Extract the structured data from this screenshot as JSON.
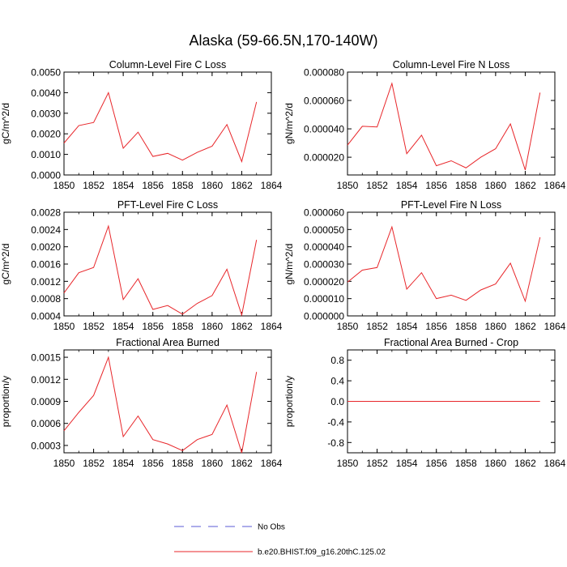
{
  "figure_title": "Alaska (59-66.5N,170-140W)",
  "legend": {
    "entries": [
      {
        "label": "No Obs",
        "color": "#5b5bd6",
        "dash": true
      },
      {
        "label": "b.e20.BHIST.f09_g16.20thC.125.02",
        "color": "#e8262a",
        "dash": false
      }
    ]
  },
  "chart_data": [
    {
      "type": "line",
      "title": "Column-Level Fire C Loss",
      "ylabel": "gC/m^2/d",
      "xlim": [
        1850,
        1864
      ],
      "ylim": [
        0.0,
        0.005
      ],
      "xticks": [
        "1850",
        "1852",
        "1854",
        "1856",
        "1858",
        "1860",
        "1862",
        "1864"
      ],
      "yticks": [
        "0.0000",
        "0.0010",
        "0.0020",
        "0.0030",
        "0.0040",
        "0.0050"
      ],
      "x": [
        1850,
        1851,
        1852,
        1853,
        1854,
        1855,
        1856,
        1857,
        1858,
        1859,
        1860,
        1861,
        1862,
        1863
      ],
      "series": [
        {
          "color": "#e8262a",
          "values": [
            0.00155,
            0.0024,
            0.00255,
            0.004,
            0.0013,
            0.00208,
            0.0009,
            0.00105,
            0.00072,
            0.0011,
            0.0014,
            0.00245,
            0.00065,
            0.00355
          ]
        }
      ]
    },
    {
      "type": "line",
      "title": "Column-Level Fire N Loss",
      "ylabel": "gN/m^2/d",
      "xlim": [
        1850,
        1864
      ],
      "ylim": [
        7.5e-06,
        8e-05
      ],
      "xticks": [
        "1850",
        "1852",
        "1854",
        "1856",
        "1858",
        "1860",
        "1862",
        "1864"
      ],
      "yticks": [
        "0.000020",
        "0.000040",
        "0.000060",
        "0.000080"
      ],
      "x": [
        1850,
        1851,
        1852,
        1853,
        1854,
        1855,
        1856,
        1857,
        1858,
        1859,
        1860,
        1861,
        1862,
        1863
      ],
      "series": [
        {
          "color": "#e8262a",
          "values": [
            2.85e-05,
            4.18e-05,
            4.13e-05,
            7.2e-05,
            2.25e-05,
            3.55e-05,
            1.4e-05,
            1.75e-05,
            1.25e-05,
            2e-05,
            2.6e-05,
            4.35e-05,
            1.1e-05,
            6.55e-05
          ]
        }
      ]
    },
    {
      "type": "line",
      "title": "PFT-Level Fire C Loss",
      "ylabel": "gC/m^2/d",
      "xlim": [
        1850,
        1864
      ],
      "ylim": [
        0.0004,
        0.0028
      ],
      "xticks": [
        "1850",
        "1852",
        "1854",
        "1856",
        "1858",
        "1860",
        "1862",
        "1864"
      ],
      "yticks": [
        "0.0004",
        "0.0008",
        "0.0012",
        "0.0016",
        "0.0020",
        "0.0024",
        "0.0028"
      ],
      "x": [
        1850,
        1851,
        1852,
        1853,
        1854,
        1855,
        1856,
        1857,
        1858,
        1859,
        1860,
        1861,
        1862,
        1863
      ],
      "series": [
        {
          "color": "#e8262a",
          "values": [
            0.00093,
            0.0014,
            0.00152,
            0.00248,
            0.00078,
            0.00126,
            0.00055,
            0.00064,
            0.00044,
            0.00069,
            0.00087,
            0.00148,
            0.00042,
            0.00216
          ]
        }
      ]
    },
    {
      "type": "line",
      "title": "PFT-Level Fire N Loss",
      "ylabel": "gN/m^2/d",
      "xlim": [
        1850,
        1864
      ],
      "ylim": [
        0.0,
        6e-05
      ],
      "xticks": [
        "1850",
        "1852",
        "1854",
        "1856",
        "1858",
        "1860",
        "1862",
        "1864"
      ],
      "yticks": [
        "0.000000",
        "0.000010",
        "0.000020",
        "0.000030",
        "0.000040",
        "0.000050",
        "0.000060"
      ],
      "x": [
        1850,
        1851,
        1852,
        1853,
        1854,
        1855,
        1856,
        1857,
        1858,
        1859,
        1860,
        1861,
        1862,
        1863
      ],
      "series": [
        {
          "color": "#e8262a",
          "values": [
            1.95e-05,
            2.65e-05,
            2.8e-05,
            5.15e-05,
            1.55e-05,
            2.5e-05,
            1e-05,
            1.2e-05,
            9e-06,
            1.5e-05,
            1.85e-05,
            3.05e-05,
            8.5e-06,
            4.55e-05
          ]
        }
      ]
    },
    {
      "type": "line",
      "title": "Fractional Area Burned",
      "ylabel": "proportion/y",
      "xlim": [
        1850,
        1864
      ],
      "ylim": [
        0.0002,
        0.0016
      ],
      "xticks": [
        "1850",
        "1852",
        "1854",
        "1856",
        "1858",
        "1860",
        "1862",
        "1864"
      ],
      "yticks": [
        "0.0003",
        "0.0006",
        "0.0009",
        "0.0012",
        "0.0015"
      ],
      "x": [
        1850,
        1851,
        1852,
        1853,
        1854,
        1855,
        1856,
        1857,
        1858,
        1859,
        1860,
        1861,
        1862,
        1863
      ],
      "series": [
        {
          "color": "#e8262a",
          "values": [
            0.0005,
            0.00075,
            0.00098,
            0.0015,
            0.00042,
            0.0007,
            0.00038,
            0.00032,
            0.00023,
            0.00038,
            0.00045,
            0.00085,
            0.0002,
            0.0013
          ]
        }
      ]
    },
    {
      "type": "line",
      "title": "Fractional Area Burned - Crop",
      "ylabel": "proportion/y",
      "xlim": [
        1850,
        1864
      ],
      "ylim": [
        -1.0,
        1.0
      ],
      "xticks": [
        "1850",
        "1852",
        "1854",
        "1856",
        "1858",
        "1860",
        "1862",
        "1864"
      ],
      "yticks": [
        "-0.8",
        "-0.4",
        "0.0",
        "0.4",
        "0.8"
      ],
      "x": [
        1850,
        1851,
        1852,
        1853,
        1854,
        1855,
        1856,
        1857,
        1858,
        1859,
        1860,
        1861,
        1862,
        1863
      ],
      "series": [
        {
          "color": "#e8262a",
          "values": [
            0,
            0,
            0,
            0,
            0,
            0,
            0,
            0,
            0,
            0,
            0,
            0,
            0,
            0
          ]
        }
      ]
    }
  ]
}
